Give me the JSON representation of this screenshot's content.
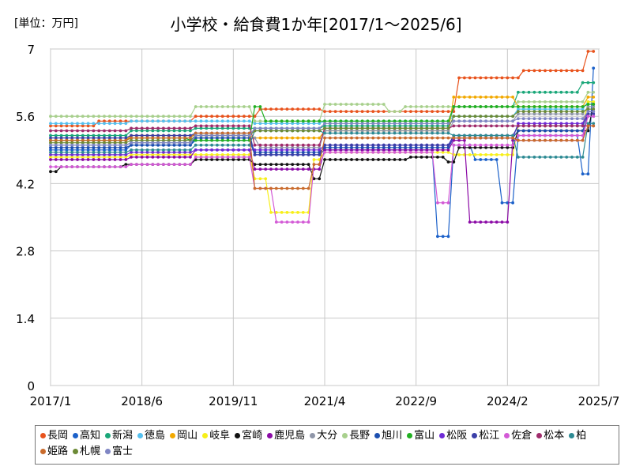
{
  "chart_data": {
    "type": "line",
    "title": "小学校・給食費1か年[2017/1～2025/6]",
    "unit_label": "[単位：万円]",
    "ylim": [
      0,
      7
    ],
    "yticks": [
      "0",
      "1.4",
      "2.8",
      "4.2",
      "5.6",
      "7"
    ],
    "xlim": [
      0,
      102
    ],
    "xticks": [
      {
        "pos": 0,
        "label": "2017/1"
      },
      {
        "pos": 17,
        "label": "2018/6"
      },
      {
        "pos": 34,
        "label": "2019/11"
      },
      {
        "pos": 51,
        "label": "2021/4"
      },
      {
        "pos": 68,
        "label": "2022/9"
      },
      {
        "pos": 85,
        "label": "2024/2"
      },
      {
        "pos": 102,
        "label": "2025/7"
      }
    ],
    "grid": true,
    "legend_position": "bottom",
    "series": [
      {
        "name": "長岡",
        "color": "#e8531d",
        "steps": [
          [
            0,
            5.4
          ],
          [
            9,
            5.5
          ],
          [
            27,
            5.6
          ],
          [
            39,
            5.75
          ],
          [
            51,
            5.7
          ],
          [
            76,
            6.4
          ],
          [
            88,
            6.55
          ],
          [
            100,
            6.95
          ]
        ]
      },
      {
        "name": "高知",
        "color": "#1c61c9",
        "steps": [
          [
            0,
            4.9
          ],
          [
            15,
            5.0
          ],
          [
            27,
            5.1
          ],
          [
            38,
            4.8
          ],
          [
            51,
            4.9
          ],
          [
            72,
            3.1
          ],
          [
            75,
            5.0
          ],
          [
            79,
            4.7
          ],
          [
            84,
            3.8
          ],
          [
            87,
            5.2
          ],
          [
            99,
            4.4
          ],
          [
            101,
            6.6
          ]
        ]
      },
      {
        "name": "新潟",
        "color": "#1aa779",
        "steps": [
          [
            0,
            5.2
          ],
          [
            15,
            5.3
          ],
          [
            27,
            5.35
          ],
          [
            51,
            5.4
          ],
          [
            75,
            5.8
          ],
          [
            87,
            6.1
          ],
          [
            99,
            6.3
          ]
        ]
      },
      {
        "name": "徳島",
        "color": "#55c0ef",
        "steps": [
          [
            0,
            5.45
          ],
          [
            15,
            5.5
          ],
          [
            38,
            5.45
          ],
          [
            51,
            5.5
          ],
          [
            75,
            5.6
          ],
          [
            87,
            5.75
          ],
          [
            100,
            5.9
          ]
        ]
      },
      {
        "name": "岡山",
        "color": "#f2a900",
        "steps": [
          [
            0,
            5.1
          ],
          [
            15,
            5.2
          ],
          [
            38,
            5.15
          ],
          [
            51,
            5.3
          ],
          [
            75,
            6.0
          ],
          [
            87,
            5.8
          ],
          [
            100,
            6.0
          ]
        ]
      },
      {
        "name": "岐阜",
        "color": "#f7ef19",
        "steps": [
          [
            0,
            4.75
          ],
          [
            15,
            4.8
          ],
          [
            38,
            4.3
          ],
          [
            41,
            3.6
          ],
          [
            49,
            4.7
          ],
          [
            51,
            4.85
          ],
          [
            75,
            4.8
          ],
          [
            87,
            5.4
          ],
          [
            100,
            5.9
          ]
        ]
      },
      {
        "name": "宮崎",
        "color": "#111111",
        "steps": [
          [
            0,
            4.45
          ],
          [
            2,
            4.55
          ],
          [
            14,
            4.6
          ],
          [
            27,
            4.7
          ],
          [
            38,
            4.6
          ],
          [
            49,
            4.3
          ],
          [
            51,
            4.7
          ],
          [
            67,
            4.75
          ],
          [
            74,
            4.65
          ],
          [
            76,
            4.95
          ],
          [
            87,
            5.3
          ],
          [
            99,
            5.3
          ],
          [
            101,
            5.85
          ]
        ]
      },
      {
        "name": "鹿児島",
        "color": "#8b0aa6",
        "steps": [
          [
            0,
            4.7
          ],
          [
            15,
            4.75
          ],
          [
            27,
            4.9
          ],
          [
            38,
            4.5
          ],
          [
            51,
            4.9
          ],
          [
            75,
            5.1
          ],
          [
            78,
            3.4
          ],
          [
            86,
            5.1
          ],
          [
            100,
            5.7
          ]
        ]
      },
      {
        "name": "大分",
        "color": "#8f96a8",
        "steps": [
          [
            0,
            5.0
          ],
          [
            15,
            5.05
          ],
          [
            27,
            5.15
          ],
          [
            39,
            4.95
          ],
          [
            51,
            5.3
          ],
          [
            75,
            5.5
          ],
          [
            87,
            5.65
          ],
          [
            100,
            5.8
          ]
        ]
      },
      {
        "name": "長野",
        "color": "#a8d08d",
        "steps": [
          [
            0,
            5.6
          ],
          [
            15,
            5.6
          ],
          [
            27,
            5.8
          ],
          [
            38,
            5.5
          ],
          [
            51,
            5.85
          ],
          [
            63,
            5.7
          ],
          [
            66,
            5.8
          ],
          [
            87,
            5.9
          ],
          [
            100,
            6.1
          ]
        ]
      },
      {
        "name": "旭川",
        "color": "#1c4fb0",
        "steps": [
          [
            0,
            4.95
          ],
          [
            15,
            5.0
          ],
          [
            27,
            5.15
          ],
          [
            38,
            4.85
          ],
          [
            51,
            4.95
          ],
          [
            75,
            5.15
          ],
          [
            87,
            5.3
          ],
          [
            100,
            5.6
          ]
        ]
      },
      {
        "name": "富山",
        "color": "#22b022",
        "steps": [
          [
            0,
            5.1
          ],
          [
            15,
            5.15
          ],
          [
            26,
            5.1
          ],
          [
            38,
            5.8
          ],
          [
            40,
            5.5
          ],
          [
            51,
            5.5
          ],
          [
            75,
            5.8
          ],
          [
            87,
            5.8
          ],
          [
            100,
            5.85
          ]
        ]
      },
      {
        "name": "松阪",
        "color": "#6e2bd6",
        "steps": [
          [
            0,
            4.8
          ],
          [
            15,
            4.85
          ],
          [
            27,
            4.9
          ],
          [
            38,
            4.9
          ],
          [
            51,
            5.0
          ],
          [
            75,
            5.15
          ],
          [
            87,
            5.45
          ],
          [
            100,
            5.7
          ]
        ]
      },
      {
        "name": "松江",
        "color": "#3b3fa8",
        "steps": [
          [
            0,
            5.15
          ],
          [
            15,
            5.2
          ],
          [
            27,
            5.25
          ],
          [
            38,
            4.8
          ],
          [
            51,
            5.0
          ],
          [
            75,
            5.2
          ],
          [
            87,
            5.4
          ],
          [
            100,
            5.65
          ]
        ]
      },
      {
        "name": "佐倉",
        "color": "#d35ad6",
        "steps": [
          [
            0,
            4.55
          ],
          [
            15,
            4.6
          ],
          [
            27,
            4.75
          ],
          [
            38,
            4.1
          ],
          [
            42,
            3.4
          ],
          [
            49,
            4.6
          ],
          [
            51,
            4.85
          ],
          [
            72,
            3.8
          ],
          [
            75,
            5.0
          ],
          [
            87,
            5.2
          ],
          [
            100,
            5.6
          ]
        ]
      },
      {
        "name": "松本",
        "color": "#a02c6c",
        "steps": [
          [
            0,
            5.3
          ],
          [
            15,
            5.35
          ],
          [
            27,
            5.4
          ],
          [
            38,
            5.0
          ],
          [
            51,
            5.35
          ],
          [
            75,
            5.4
          ],
          [
            87,
            5.4
          ],
          [
            100,
            5.4
          ]
        ]
      },
      {
        "name": "柏",
        "color": "#2d8a93",
        "steps": [
          [
            0,
            4.85
          ],
          [
            15,
            4.9
          ],
          [
            27,
            5.0
          ],
          [
            38,
            5.3
          ],
          [
            51,
            5.25
          ],
          [
            75,
            5.2
          ],
          [
            87,
            4.75
          ],
          [
            100,
            5.45
          ]
        ]
      },
      {
        "name": "姫路",
        "color": "#c96b2c",
        "steps": [
          [
            0,
            5.1
          ],
          [
            15,
            5.15
          ],
          [
            27,
            5.25
          ],
          [
            38,
            4.1
          ],
          [
            49,
            4.6
          ],
          [
            51,
            5.15
          ],
          [
            75,
            5.15
          ],
          [
            87,
            5.1
          ],
          [
            100,
            5.4
          ]
        ]
      },
      {
        "name": "札幌",
        "color": "#6c8a36",
        "steps": [
          [
            0,
            5.05
          ],
          [
            15,
            5.1
          ],
          [
            27,
            5.2
          ],
          [
            38,
            5.3
          ],
          [
            51,
            5.35
          ],
          [
            75,
            5.6
          ],
          [
            87,
            5.7
          ],
          [
            100,
            5.75
          ]
        ]
      },
      {
        "name": "富士",
        "color": "#7f86c4",
        "steps": [
          [
            0,
            5.0
          ],
          [
            15,
            5.05
          ],
          [
            27,
            5.2
          ],
          [
            38,
            5.35
          ],
          [
            51,
            5.45
          ],
          [
            75,
            5.5
          ],
          [
            87,
            5.55
          ],
          [
            100,
            5.7
          ]
        ]
      }
    ]
  }
}
